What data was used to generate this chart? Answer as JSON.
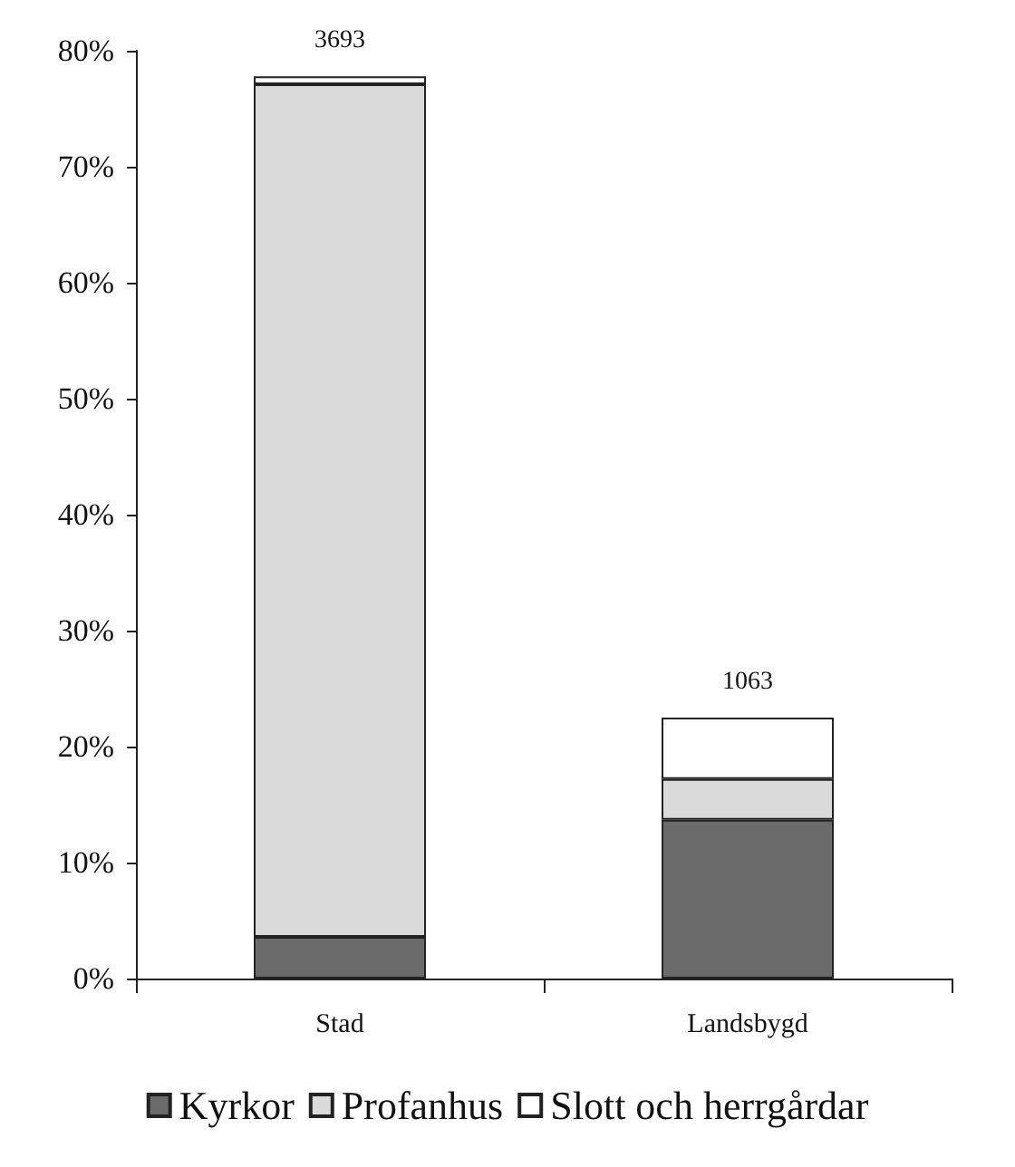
{
  "chart_data": {
    "type": "bar",
    "stacked": true,
    "categories": [
      "Stad",
      "Landsbygd"
    ],
    "series": [
      {
        "name": "Kyrkor",
        "color": "#6b6b6b",
        "values": [
          3.6,
          13.7
        ]
      },
      {
        "name": "Profanhus",
        "color": "#dadada",
        "values": [
          73.5,
          3.5
        ]
      },
      {
        "name": "Slott och herrgårdar",
        "color": "#ffffff",
        "values": [
          0.7,
          5.3
        ]
      }
    ],
    "annotations": [
      {
        "text": "3693",
        "x": "Stad",
        "y": 77.8
      },
      {
        "text": "1063",
        "x": "Landsbygd",
        "y": 22.5
      }
    ],
    "ylim": [
      0,
      80
    ],
    "yticks": [
      {
        "value": 0,
        "label": "0%"
      },
      {
        "value": 10,
        "label": "10%"
      },
      {
        "value": 20,
        "label": "20%"
      },
      {
        "value": 30,
        "label": "30%"
      },
      {
        "value": 40,
        "label": "40%"
      },
      {
        "value": 50,
        "label": "50%"
      },
      {
        "value": 60,
        "label": "60%"
      },
      {
        "value": 70,
        "label": "70%"
      },
      {
        "value": 80,
        "label": "80%"
      }
    ],
    "grid": false,
    "legend": "bottom"
  }
}
